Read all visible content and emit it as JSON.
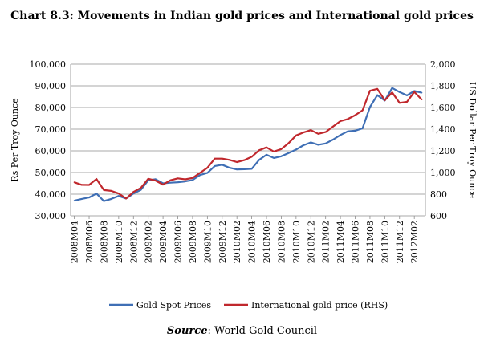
{
  "chart_data": {
    "type": "line",
    "title": "Chart 8.3: Movements in Indian gold prices and International gold prices",
    "ylabel": "Rs Per Troy Ounce",
    "y2label": "US Dollar Per Troy Ounce",
    "ylim": [
      30000,
      100000
    ],
    "y2lim": [
      600,
      2000
    ],
    "yticks": [
      "30,000",
      "40,000",
      "50,000",
      "60,000",
      "70,000",
      "80,000",
      "90,000",
      "100,000"
    ],
    "y2ticks": [
      "600",
      "800",
      "1,000",
      "1,200",
      "1,400",
      "1,600",
      "1,800",
      "2,000"
    ],
    "xticks": [
      "2008M04",
      "2008M06",
      "2008M08",
      "2008M10",
      "2008M12",
      "2009M02",
      "2009M04",
      "2009M06",
      "2009M08",
      "2009M10",
      "2009M12",
      "2010M02",
      "2010M04",
      "2010M06",
      "2010M08",
      "2010M10",
      "2010M12",
      "2011M02",
      "2011M04",
      "2011M06",
      "2011M08",
      "2011M10",
      "2011M12",
      "2012M02"
    ],
    "grid": true,
    "legend_position": "bottom",
    "x": [
      "2008M04",
      "2008M05",
      "2008M06",
      "2008M07",
      "2008M08",
      "2008M09",
      "2008M10",
      "2008M11",
      "2008M12",
      "2009M01",
      "2009M02",
      "2009M03",
      "2009M04",
      "2009M05",
      "2009M06",
      "2009M07",
      "2009M08",
      "2009M09",
      "2009M10",
      "2009M11",
      "2009M12",
      "2010M01",
      "2010M02",
      "2010M03",
      "2010M04",
      "2010M05",
      "2010M06",
      "2010M07",
      "2010M08",
      "2010M09",
      "2010M10",
      "2010M11",
      "2010M12",
      "2011M01",
      "2011M02",
      "2011M03",
      "2011M04",
      "2011M05",
      "2011M06",
      "2011M07",
      "2011M08",
      "2011M09",
      "2011M10",
      "2011M11",
      "2011M12",
      "2012M01",
      "2012M02",
      "2012M03"
    ],
    "series": [
      {
        "name": "Gold Spot Prices",
        "axis": "left",
        "color": "#3F6FB5",
        "values": [
          37000,
          37800,
          38500,
          40300,
          36800,
          37800,
          39200,
          38000,
          40300,
          42000,
          46400,
          46900,
          45000,
          45300,
          45500,
          45900,
          46500,
          48800,
          49800,
          53000,
          53600,
          52200,
          51400,
          51500,
          51700,
          55800,
          58200,
          56700,
          57500,
          59000,
          60600,
          62600,
          63900,
          62800,
          63400,
          65200,
          67300,
          69000,
          69300,
          70400,
          80200,
          85700,
          83200,
          89000,
          87100,
          85600,
          87600,
          86800
        ]
      },
      {
        "name": "International gold price (RHS)",
        "axis": "right",
        "color": "#C0282D",
        "values": [
          910,
          886,
          885,
          940,
          838,
          830,
          806,
          760,
          821,
          858,
          942,
          925,
          888,
          928,
          946,
          937,
          950,
          996,
          1044,
          1128,
          1128,
          1116,
          1096,
          1114,
          1145,
          1205,
          1232,
          1193,
          1216,
          1271,
          1342,
          1370,
          1391,
          1357,
          1373,
          1424,
          1474,
          1493,
          1529,
          1574,
          1754,
          1772,
          1667,
          1739,
          1642,
          1652,
          1744,
          1673
        ]
      }
    ]
  },
  "source": {
    "label": "Source",
    "text": ": World Gold Council"
  }
}
